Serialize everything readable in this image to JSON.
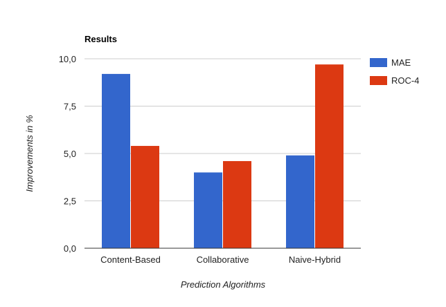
{
  "chart_data": {
    "type": "bar",
    "title": "Results",
    "xlabel": "Prediction Algorithms",
    "ylabel": "Improvements in %",
    "categories": [
      "Content-Based",
      "Collaborative",
      "Naive-Hybrid"
    ],
    "series": [
      {
        "name": "MAE",
        "color": "#3366cc",
        "values": [
          9.2,
          4.0,
          4.9
        ]
      },
      {
        "name": "ROC-4",
        "color": "#dc3912",
        "values": [
          5.4,
          4.6,
          9.7
        ]
      }
    ],
    "ylim": [
      0,
      10
    ],
    "yticks": [
      "0,0",
      "2,5",
      "5,0",
      "7,5",
      "10,0"
    ],
    "grid": true,
    "legend_position": "right"
  }
}
